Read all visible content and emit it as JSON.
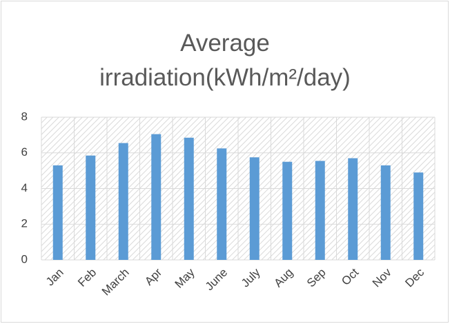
{
  "chart_data": {
    "type": "bar",
    "title": "Average irradiation(kWh/m²/day)",
    "categories": [
      "Jan",
      "Feb",
      "March",
      "Apr",
      "May",
      "June",
      "July",
      "Aug",
      "Sep",
      "Oct",
      "Nov",
      "Dec"
    ],
    "values": [
      5.3,
      5.85,
      6.55,
      7.05,
      6.85,
      6.25,
      5.75,
      5.5,
      5.55,
      5.7,
      5.3,
      4.9
    ],
    "color": "#5b9bd5",
    "ylim": [
      0,
      8
    ],
    "yticks": [
      0,
      2,
      4,
      6,
      8
    ],
    "grid": true
  }
}
